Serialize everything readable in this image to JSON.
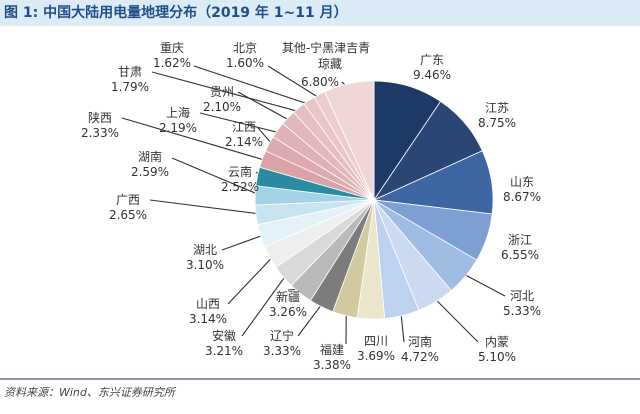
{
  "title": "图 1: 中国大陆用电量地理分布（2019 年 1~11 月）",
  "source": "资料来源：Wind、东兴证券研究所",
  "chart_data": {
    "type": "pie",
    "title": "图 1: 中国大陆用电量地理分布（2019 年 1~11 月）",
    "unit": "%",
    "slices": [
      {
        "name": "广东",
        "value": 9.46,
        "label": "9.46%",
        "color": "#1b3a66"
      },
      {
        "name": "江苏",
        "value": 8.75,
        "label": "8.75%",
        "color": "#2a4674"
      },
      {
        "name": "山东",
        "value": 8.67,
        "label": "8.67%",
        "color": "#3d66a3"
      },
      {
        "name": "浙江",
        "value": 6.55,
        "label": "6.55%",
        "color": "#7d9fd2"
      },
      {
        "name": "河北",
        "value": 5.33,
        "label": "5.33%",
        "color": "#9fbce2"
      },
      {
        "name": "内蒙",
        "value": 5.1,
        "label": "5.10%",
        "color": "#cbdaf0"
      },
      {
        "name": "河南",
        "value": 4.72,
        "label": "4.72%",
        "color": "#bcd2f0"
      },
      {
        "name": "四川",
        "value": 3.69,
        "label": "3.69%",
        "color": "#ebe6cc"
      },
      {
        "name": "福建",
        "value": 3.38,
        "label": "3.38%",
        "color": "#d3cb9f"
      },
      {
        "name": "辽宁",
        "value": 3.33,
        "label": "3.33%",
        "color": "#7c7c7e"
      },
      {
        "name": "新疆",
        "value": 3.26,
        "label": "3.26%",
        "color": "#b9b9bb"
      },
      {
        "name": "安徽",
        "value": 3.21,
        "label": "3.21%",
        "color": "#d9d9db"
      },
      {
        "name": "山西",
        "value": 3.14,
        "label": "3.14%",
        "color": "#eeeeef"
      },
      {
        "name": "湖北",
        "value": 3.1,
        "label": "3.10%",
        "color": "#e3f2f9"
      },
      {
        "name": "广西",
        "value": 2.65,
        "label": "2.65%",
        "color": "#c6e5f1"
      },
      {
        "name": "湖南",
        "value": 2.59,
        "label": "2.59%",
        "color": "#a3d3e6"
      },
      {
        "name": "云南",
        "value": 2.52,
        "label": "2.52%",
        "color": "#2b8ba2"
      },
      {
        "name": "陕西",
        "value": 2.33,
        "label": "2.33%",
        "color": "#d9a3a8"
      },
      {
        "name": "江西",
        "value": 2.14,
        "label": "2.14%",
        "color": "#dcaab0"
      },
      {
        "name": "上海",
        "value": 2.19,
        "label": "2.19%",
        "color": "#e0b1b6"
      },
      {
        "name": "贵州",
        "value": 2.1,
        "label": "2.10%",
        "color": "#e3b8bc"
      },
      {
        "name": "甘肃",
        "value": 1.79,
        "label": "1.79%",
        "color": "#e6bec2"
      },
      {
        "name": "重庆",
        "value": 1.62,
        "label": "1.62%",
        "color": "#e9c5c8"
      },
      {
        "name": "北京",
        "value": 1.6,
        "label": "1.60%",
        "color": "#ecccce"
      },
      {
        "name": "其他-宁黑津吉青琼藏",
        "value": 6.8,
        "label": "6.80%",
        "color": "#efd6d7"
      }
    ]
  }
}
